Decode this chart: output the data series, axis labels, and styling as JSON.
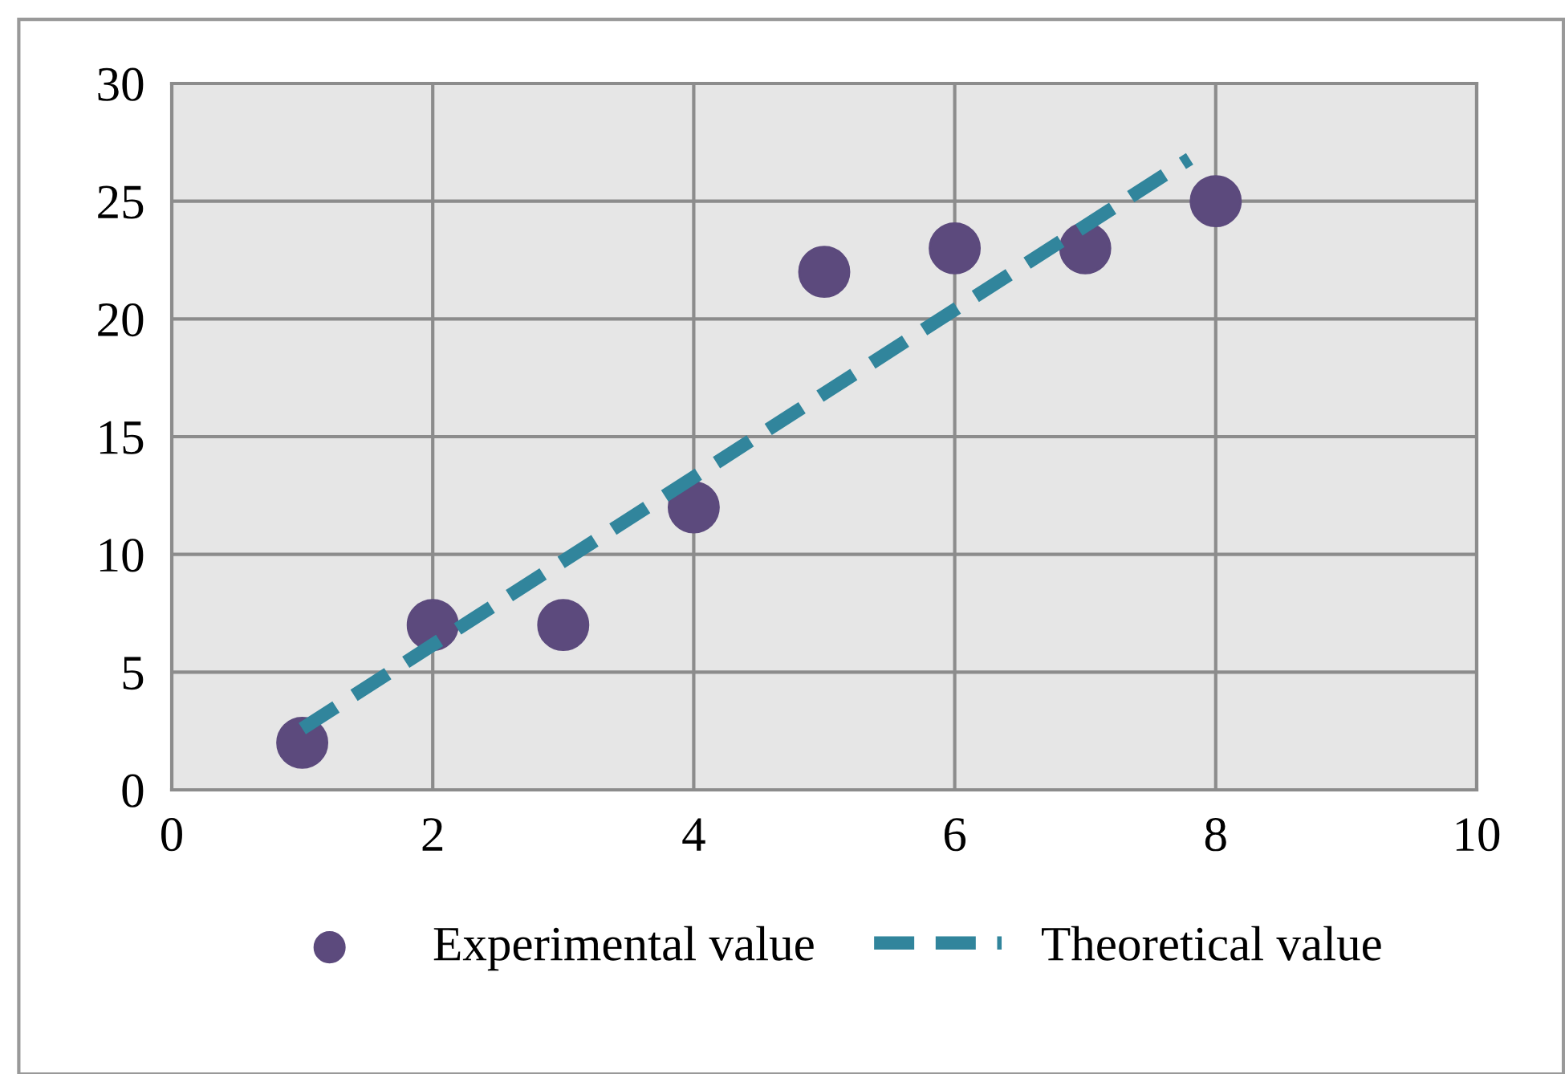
{
  "chart_data": {
    "type": "scatter",
    "series": [
      {
        "name": "Experimental value",
        "color": "#5c4a7d",
        "marker": "circle",
        "x": [
          1,
          2,
          3,
          4,
          5,
          6,
          7,
          8
        ],
        "values": [
          2,
          7,
          7,
          12,
          22,
          23,
          23,
          25
        ]
      },
      {
        "name": "Theoretical value",
        "type": "line",
        "color": "#31859c",
        "marker": "none",
        "line_style": "dashed",
        "x": [
          1,
          7.8
        ],
        "values": [
          2.6,
          26.8
        ]
      }
    ],
    "xlim": [
      0,
      10
    ],
    "xticks": [
      0,
      2,
      4,
      6,
      8,
      10
    ],
    "ylim": [
      0,
      30
    ],
    "yticks": [
      0,
      5,
      10,
      15,
      20,
      25,
      30
    ],
    "grid": true,
    "legend": "bottom"
  }
}
